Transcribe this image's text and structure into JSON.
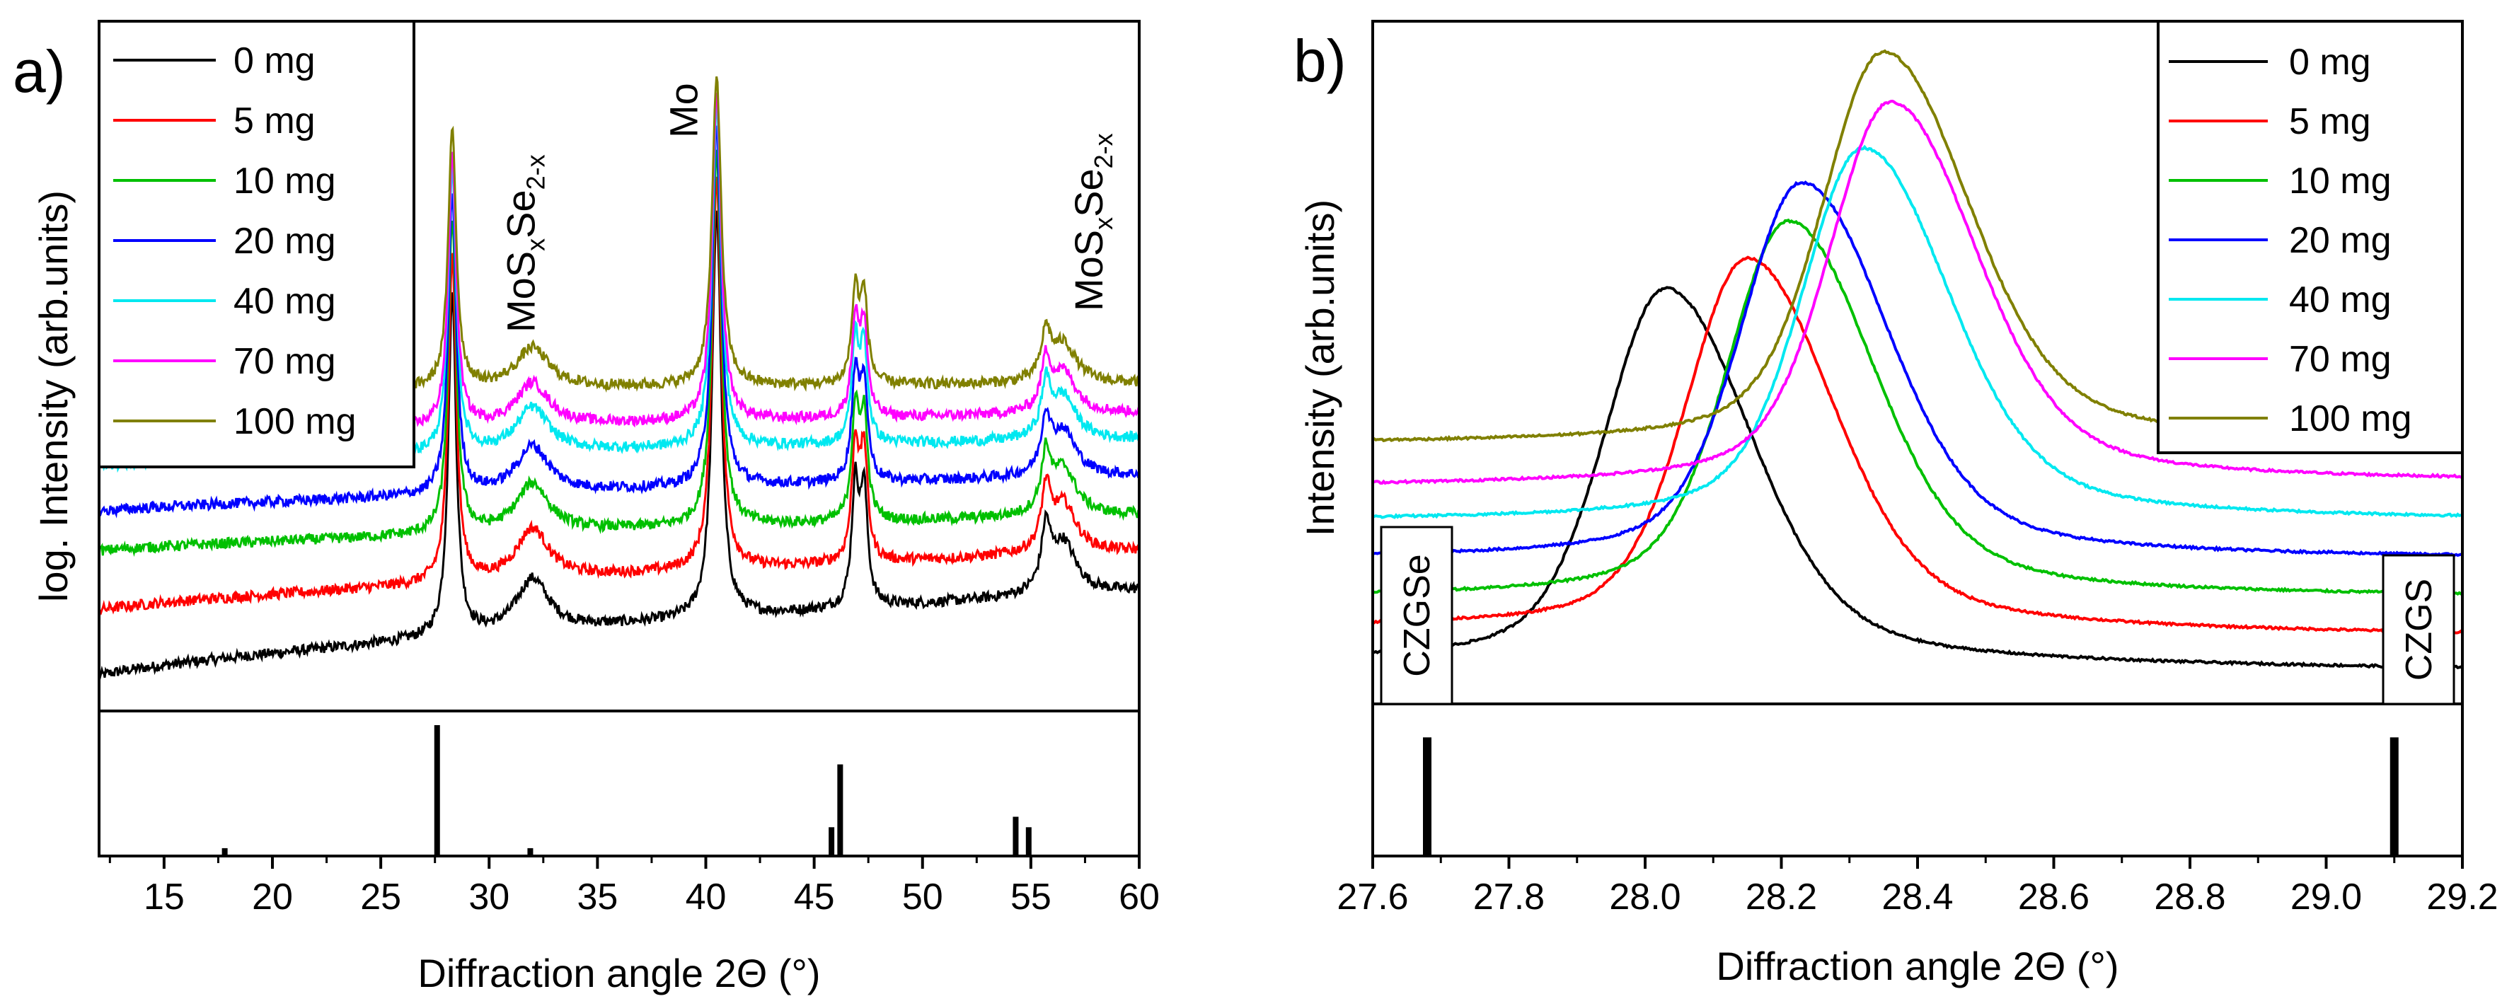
{
  "chart_data": [
    {
      "type": "line",
      "panel_label": "a)",
      "xlabel": "Diffraction angle 2Θ (°)",
      "ylabel": "log. Intensity (arb.units)",
      "xlim": [
        12,
        60
      ],
      "xticks": [
        15,
        20,
        25,
        30,
        35,
        40,
        45,
        50,
        55,
        60
      ],
      "legend_position": "top-left",
      "series": [
        {
          "name": "0 mg",
          "color": "#000000",
          "baseline_start": 1.0,
          "baseline_end": 14.0
        },
        {
          "name": "5 mg",
          "color": "#ff0000",
          "baseline_start": 11.0,
          "baseline_end": 20.0
        },
        {
          "name": "10 mg",
          "color": "#00c000",
          "baseline_start": 20.0,
          "baseline_end": 25.5
        },
        {
          "name": "20 mg",
          "color": "#0000ff",
          "baseline_start": 26.0,
          "baseline_end": 31.5
        },
        {
          "name": "40 mg",
          "color": "#00e8f0",
          "baseline_start": 33.0,
          "baseline_end": 37.0
        },
        {
          "name": "70 mg",
          "color": "#ff00ff",
          "baseline_start": 37.0,
          "baseline_end": 41.0
        },
        {
          "name": "100 mg",
          "color": "#808000",
          "baseline_start": 44.0,
          "baseline_end": 45.5
        }
      ],
      "peaks": [
        {
          "center": 28.3,
          "width": 0.22,
          "height": 52
        },
        {
          "center": 32.0,
          "width": 0.9,
          "height": 8
        },
        {
          "center": 40.5,
          "width": 0.25,
          "height": 62
        },
        {
          "center": 46.9,
          "width": 0.2,
          "height": 18
        },
        {
          "center": 47.3,
          "width": 0.2,
          "height": 17
        },
        {
          "center": 55.7,
          "width": 0.25,
          "height": 9
        },
        {
          "center": 56.5,
          "width": 0.7,
          "height": 8
        }
      ],
      "annotations": [
        {
          "base": "MoS",
          "sub1": "x",
          "mid": "Se",
          "sub2": "2-x",
          "x": 32.1
        },
        {
          "text": "Mo",
          "x": 39.6
        },
        {
          "base": "MoS",
          "sub1": "x",
          "mid": "Se",
          "sub2": "2-x",
          "x": 58.3
        }
      ],
      "reference_sticks": [
        {
          "x": 17.8,
          "h": 0.06
        },
        {
          "x": 27.6,
          "h": 1.0
        },
        {
          "x": 31.9,
          "h": 0.06
        },
        {
          "x": 45.8,
          "h": 0.22
        },
        {
          "x": 46.2,
          "h": 0.7
        },
        {
          "x": 54.3,
          "h": 0.3
        },
        {
          "x": 54.9,
          "h": 0.22
        }
      ]
    },
    {
      "type": "line",
      "panel_label": "b)",
      "xlabel": "Diffraction angle 2Θ (°)",
      "ylabel": "Intensity (arb.units)",
      "xlim": [
        27.6,
        29.2
      ],
      "xticks": [
        "27.6",
        "27.8",
        "28.0",
        "28.2",
        "28.4",
        "28.6",
        "28.8",
        "29.0",
        "29.2"
      ],
      "legend_position": "top-right",
      "series": [
        {
          "name": "0 mg",
          "color": "#000000",
          "peak_x": 28.03,
          "peak_y": 100,
          "baseline_left": 3,
          "baseline_right": 1
        },
        {
          "name": "5 mg",
          "color": "#ff0000",
          "peak_x": 28.15,
          "peak_y": 108,
          "baseline_left": 12,
          "baseline_right": 10
        },
        {
          "name": "10 mg",
          "color": "#00c000",
          "peak_x": 28.21,
          "peak_y": 118,
          "baseline_left": 20,
          "baseline_right": 20
        },
        {
          "name": "20 mg",
          "color": "#0000ff",
          "peak_x": 28.23,
          "peak_y": 128,
          "baseline_left": 30,
          "baseline_right": 30
        },
        {
          "name": "40 mg",
          "color": "#00e8f0",
          "peak_x": 28.32,
          "peak_y": 137,
          "baseline_left": 40,
          "baseline_right": 40
        },
        {
          "name": "70 mg",
          "color": "#ff00ff",
          "peak_x": 28.36,
          "peak_y": 149,
          "baseline_left": 49,
          "baseline_right": 50
        },
        {
          "name": "100 mg",
          "color": "#808000",
          "peak_x": 28.35,
          "peak_y": 162,
          "baseline_left": 60,
          "baseline_right": 60
        }
      ],
      "ylim": [
        -5,
        170
      ],
      "reference_labels": [
        {
          "text": "CZGSe",
          "x": 27.68
        },
        {
          "text": "CZGS",
          "x": 29.1
        }
      ],
      "reference_sticks": [
        {
          "x": 27.68,
          "h": 0.78
        },
        {
          "x": 29.1,
          "h": 0.78
        }
      ]
    }
  ]
}
